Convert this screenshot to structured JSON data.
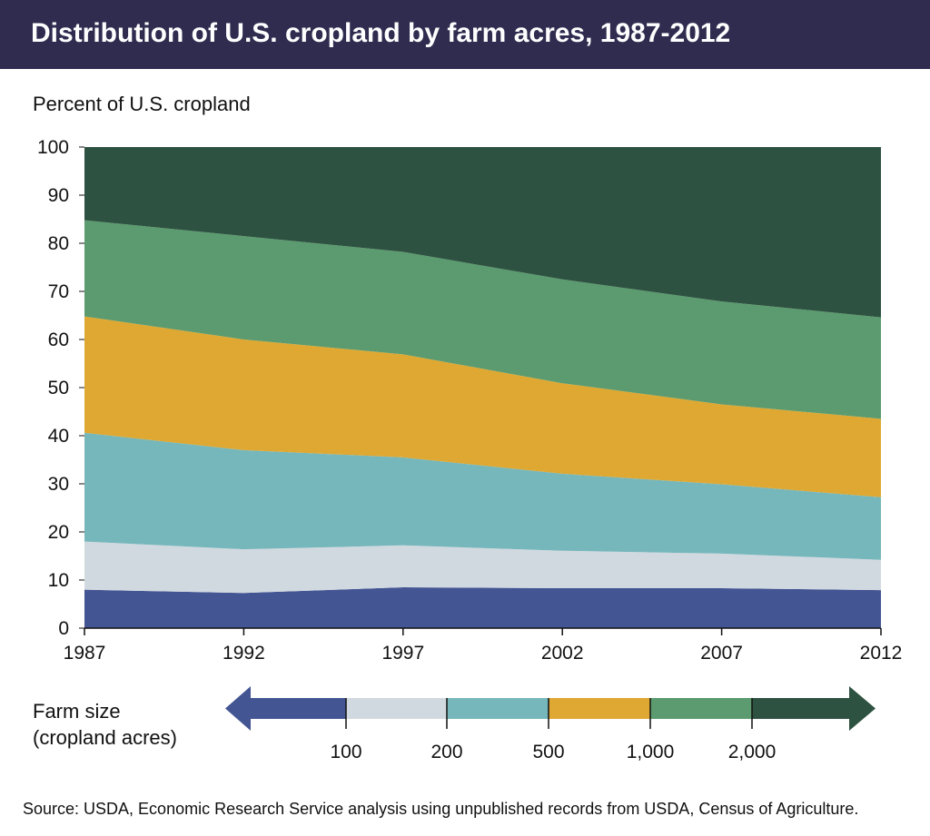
{
  "title": "Distribution of U.S. cropland by farm acres, 1987-2012",
  "colors": {
    "title_bg": "#2f2c50",
    "under_100": "#445593",
    "100_200": "#d1d9e0",
    "200_500": "#76b7bb",
    "500_1000": "#dea833",
    "1000_2000": "#5b9b6f",
    "over_2000": "#2e5241"
  },
  "legend": {
    "title_line1": "Farm size",
    "title_line2": "(cropland acres)",
    "boundaries": [
      "100",
      "200",
      "500",
      "1,000",
      "2,000"
    ]
  },
  "source": "Source: USDA, Economic Research Service analysis using unpublished records from USDA, Census of Agriculture.",
  "chart_data": {
    "type": "area",
    "stacked": true,
    "title": "Distribution of U.S. cropland by farm acres, 1987-2012",
    "ylabel": "Percent of U.S. cropland",
    "xlabel": "",
    "x": [
      1987,
      1992,
      1997,
      2002,
      2007,
      2012
    ],
    "ylim": [
      0,
      100
    ],
    "yticks": [
      0,
      10,
      20,
      30,
      40,
      50,
      60,
      70,
      80,
      90,
      100
    ],
    "series": [
      {
        "color": "#445593",
        "values": [
          8.0,
          7.3,
          8.5,
          8.3,
          8.3,
          7.9
        ]
      },
      {
        "color": "#d1d9e0",
        "values": [
          10.0,
          9.1,
          8.7,
          7.8,
          7.2,
          6.3
        ]
      },
      {
        "color": "#76b7bb",
        "values": [
          22.6,
          20.6,
          18.3,
          16.0,
          14.4,
          13.0
        ]
      },
      {
        "color": "#dea833",
        "values": [
          24.2,
          23.0,
          21.4,
          18.8,
          16.6,
          16.3
        ]
      },
      {
        "color": "#5b9b6f",
        "values": [
          20.0,
          21.5,
          21.3,
          21.6,
          21.4,
          21.1
        ]
      },
      {
        "color": "#2e5241",
        "values": [
          15.2,
          18.5,
          21.8,
          27.5,
          32.1,
          35.4
        ]
      }
    ]
  }
}
